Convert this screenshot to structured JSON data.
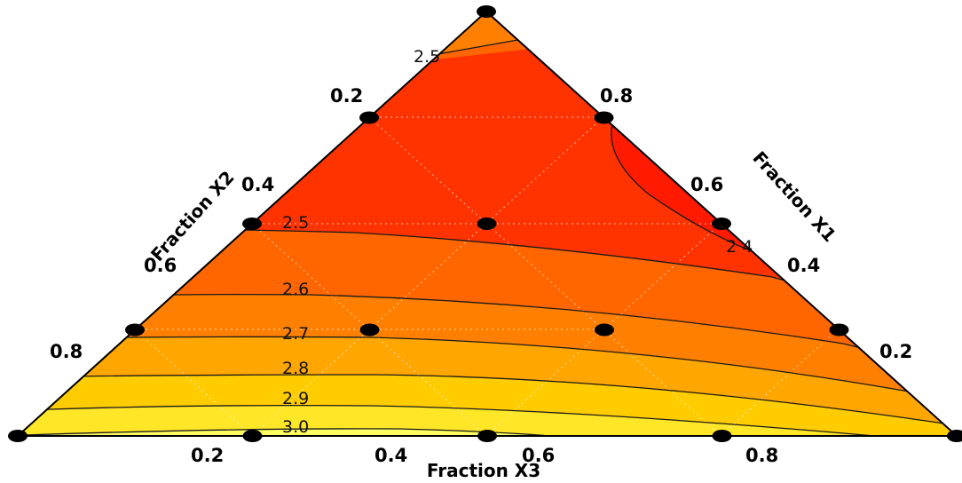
{
  "chart_data": {
    "type": "ternary contour",
    "axes": {
      "x1": {
        "title": "Fraction X1",
        "ticks": [
          "0.8",
          "0.6",
          "0.4",
          "0.2"
        ]
      },
      "x2": {
        "title": "Fraction X2",
        "ticks": [
          "0.2",
          "0.4",
          "0.6",
          "0.8"
        ]
      },
      "x3": {
        "title": "Fraction X3",
        "ticks": [
          "0.2",
          "0.4",
          "0.6",
          "0.8"
        ]
      }
    },
    "contour_levels": [
      2.4,
      2.5,
      2.6,
      2.7,
      2.8,
      2.9,
      3.0
    ],
    "contour_labels": [
      "2.5",
      "2.5",
      "2 4",
      "2.6",
      "2.7",
      "2.8",
      "2.9",
      "3.0"
    ],
    "design_points": [
      {
        "x1": 1.0,
        "x2": 0.0,
        "x3": 0.0
      },
      {
        "x1": 0.75,
        "x2": 0.25,
        "x3": 0.0
      },
      {
        "x1": 0.75,
        "x2": 0.0,
        "x3": 0.25
      },
      {
        "x1": 0.5,
        "x2": 0.5,
        "x3": 0.0
      },
      {
        "x1": 0.5,
        "x2": 0.25,
        "x3": 0.25
      },
      {
        "x1": 0.5,
        "x2": 0.0,
        "x3": 0.5
      },
      {
        "x1": 0.25,
        "x2": 0.75,
        "x3": 0.0
      },
      {
        "x1": 0.25,
        "x2": 0.5,
        "x3": 0.25
      },
      {
        "x1": 0.25,
        "x2": 0.25,
        "x3": 0.5
      },
      {
        "x1": 0.25,
        "x2": 0.0,
        "x3": 0.75
      },
      {
        "x1": 0.0,
        "x2": 1.0,
        "x3": 0.0
      },
      {
        "x1": 0.0,
        "x2": 0.75,
        "x3": 0.25
      },
      {
        "x1": 0.0,
        "x2": 0.5,
        "x3": 0.5
      },
      {
        "x1": 0.0,
        "x2": 0.25,
        "x3": 0.75
      },
      {
        "x1": 0.0,
        "x2": 0.0,
        "x3": 1.0
      }
    ],
    "colors": {
      "below_2.4": "#ff1a00",
      "2.4-2.5": "#ff3300",
      "2.5-2.6": "#ff6600",
      "2.6-2.7": "#ff8000",
      "2.7-2.8": "#ffa600",
      "2.8-2.9": "#ffcc00",
      "2.9-3.0": "#ffe626",
      "above_3.0": "#ffff60",
      "apex_region": "#ff8000"
    },
    "grid": true
  }
}
